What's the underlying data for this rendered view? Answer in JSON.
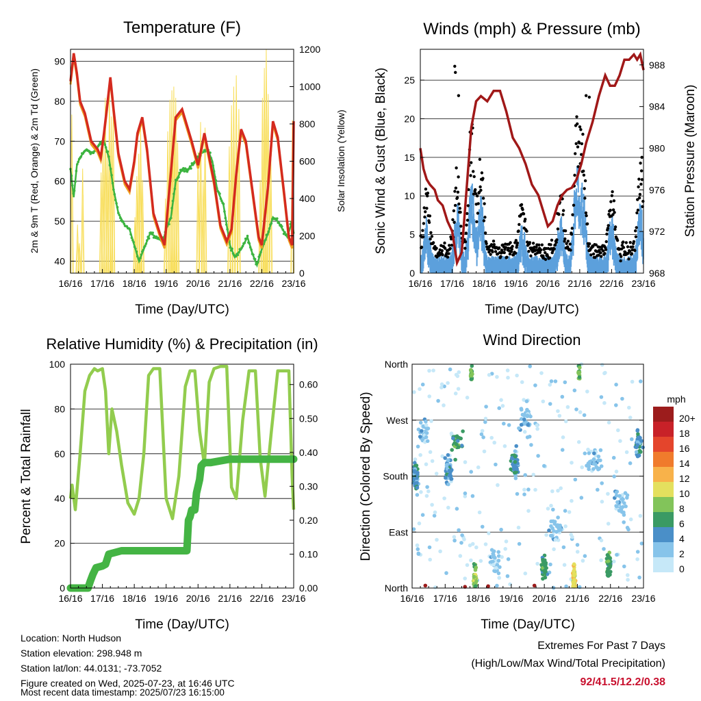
{
  "colors": {
    "temp_2m": "#d42a1f",
    "temp_9m": "#f0a020",
    "dewpoint": "#3cb440",
    "solar": "#f8de5a",
    "wind": "#5ca0dc",
    "gust": "#000000",
    "pressure": "#a01818",
    "rh": "#92cc4e",
    "precip": "#44b444"
  },
  "time_ticks": [
    "16/16",
    "17/16",
    "18/16",
    "19/16",
    "20/16",
    "21/16",
    "22/16",
    "23/16"
  ],
  "x_title": "Time (Day/UTC)",
  "temperature": {
    "title": "Temperature (F)",
    "y_left_title": "2m & 9m T (Red, Orange) & 2m Td (Green)",
    "y_right_title": "Solar Insolation (Yellow)",
    "y_left_ticks": [
      "40",
      "50",
      "60",
      "70",
      "80",
      "90"
    ],
    "y_right_ticks": [
      "0",
      "200",
      "400",
      "600",
      "800",
      "1000",
      "1200"
    ],
    "chart_data": {
      "type": "line",
      "x_range_days": [
        0,
        7
      ],
      "ylim_left": [
        37,
        93
      ],
      "ylim_right": [
        0,
        1200
      ],
      "series": [
        {
          "key": "temp_2m",
          "x": [
            0,
            0.1,
            0.2,
            0.3,
            0.45,
            0.65,
            0.85,
            0.95,
            1.05,
            1.15,
            1.25,
            1.35,
            1.5,
            1.7,
            1.85,
            2.0,
            2.1,
            2.25,
            2.4,
            2.6,
            2.8,
            2.95,
            3.1,
            3.3,
            3.5,
            3.8,
            4.0,
            4.2,
            4.35,
            4.5,
            4.7,
            4.9,
            5.05,
            5.2,
            5.35,
            5.5,
            5.7,
            5.9,
            6.0,
            6.2,
            6.35,
            6.5,
            6.7,
            6.85,
            6.95,
            7.0
          ],
          "y": [
            85,
            92,
            87,
            80,
            77,
            70,
            68,
            66,
            72,
            79,
            86,
            78,
            67,
            60,
            58,
            65,
            72,
            76,
            68,
            52,
            47,
            44,
            58,
            76,
            78,
            70,
            64,
            72,
            66,
            60,
            49,
            45,
            48,
            62,
            73,
            70,
            58,
            46,
            44,
            59,
            75,
            71,
            57,
            46,
            44,
            75
          ]
        },
        {
          "key": "dewpoint",
          "x": [
            0,
            0.1,
            0.2,
            0.3,
            0.5,
            0.7,
            0.9,
            1.05,
            1.2,
            1.35,
            1.5,
            1.7,
            1.85,
            2.0,
            2.15,
            2.3,
            2.5,
            2.7,
            2.9,
            3.0,
            3.15,
            3.3,
            3.5,
            3.7,
            3.9,
            4.1,
            4.3,
            4.45,
            4.6,
            4.8,
            5.0,
            5.15,
            5.35,
            5.55,
            5.7,
            5.85,
            6.0,
            6.2,
            6.35,
            6.5,
            6.65,
            6.8,
            6.95,
            7.0
          ],
          "y": [
            63,
            56,
            64,
            66,
            68,
            67,
            69,
            70,
            66,
            58,
            52,
            49,
            48,
            44,
            40,
            43,
            47,
            46,
            45,
            48,
            51,
            60,
            63,
            63,
            65,
            67,
            68,
            65,
            58,
            54,
            44,
            41,
            43,
            46,
            42,
            39,
            43,
            47,
            51,
            50,
            48,
            46,
            50,
            47
          ]
        }
      ],
      "solar_peaks": [
        {
          "x": 0.04,
          "y": 850
        },
        {
          "x": 0.22,
          "y": 260
        },
        {
          "x": 0.28,
          "y": 160
        },
        {
          "x": 0.38,
          "y": 560
        },
        {
          "x": 0.96,
          "y": 540
        },
        {
          "x": 1.02,
          "y": 700
        },
        {
          "x": 1.09,
          "y": 940
        },
        {
          "x": 1.15,
          "y": 640
        },
        {
          "x": 1.22,
          "y": 980
        },
        {
          "x": 1.28,
          "y": 840
        },
        {
          "x": 1.34,
          "y": 880
        },
        {
          "x": 2.02,
          "y": 300
        },
        {
          "x": 2.08,
          "y": 520
        },
        {
          "x": 2.14,
          "y": 640
        },
        {
          "x": 2.2,
          "y": 780
        },
        {
          "x": 2.26,
          "y": 500
        },
        {
          "x": 2.98,
          "y": 400
        },
        {
          "x": 3.05,
          "y": 760
        },
        {
          "x": 3.12,
          "y": 930
        },
        {
          "x": 3.18,
          "y": 980
        },
        {
          "x": 3.24,
          "y": 1000
        },
        {
          "x": 3.3,
          "y": 940
        },
        {
          "x": 3.36,
          "y": 700
        },
        {
          "x": 4.0,
          "y": 650
        },
        {
          "x": 4.08,
          "y": 810
        },
        {
          "x": 4.16,
          "y": 500
        },
        {
          "x": 4.22,
          "y": 780
        },
        {
          "x": 4.98,
          "y": 680
        },
        {
          "x": 5.05,
          "y": 900
        },
        {
          "x": 5.12,
          "y": 1000
        },
        {
          "x": 5.2,
          "y": 1060
        },
        {
          "x": 5.28,
          "y": 880
        },
        {
          "x": 5.95,
          "y": 500
        },
        {
          "x": 6.02,
          "y": 940
        },
        {
          "x": 6.08,
          "y": 1100
        },
        {
          "x": 6.14,
          "y": 1200
        },
        {
          "x": 6.2,
          "y": 960
        },
        {
          "x": 6.28,
          "y": 700
        },
        {
          "x": 6.96,
          "y": 820
        }
      ]
    }
  },
  "winds": {
    "title": "Winds (mph) & Pressure (mb)",
    "y_left_title": "Sonic Wind & Gust (Blue, Black)",
    "y_right_title": "Station Pressure (Maroon)",
    "y_left_ticks": [
      "0",
      "5",
      "10",
      "15",
      "20",
      "25"
    ],
    "y_right_ticks": [
      "968",
      "972",
      "976",
      "980",
      "984",
      "988"
    ],
    "chart_data": {
      "type": "line",
      "x_range_days": [
        0,
        7
      ],
      "ylim_left": [
        0,
        29
      ],
      "ylim_right": [
        968,
        989.5
      ],
      "pressure": {
        "x": [
          0,
          0.1,
          0.2,
          0.3,
          0.45,
          0.55,
          0.7,
          0.85,
          1.0,
          1.15,
          1.3,
          1.45,
          1.6,
          1.75,
          1.9,
          2.1,
          2.3,
          2.5,
          2.7,
          2.9,
          3.1,
          3.3,
          3.5,
          3.7,
          3.9,
          4.0,
          4.15,
          4.3,
          4.45,
          4.6,
          4.75,
          4.9,
          5.05,
          5.2,
          5.4,
          5.6,
          5.8,
          5.95,
          6.1,
          6.25,
          6.4,
          6.55,
          6.7,
          6.8,
          6.9,
          7.0
        ],
        "y": [
          980,
          978,
          977,
          976.5,
          976,
          975,
          974.5,
          973,
          972,
          969,
          970,
          976,
          982,
          984.5,
          985,
          984.5,
          985.5,
          985.5,
          983.5,
          981,
          980,
          978.5,
          976.5,
          975.5,
          973.5,
          972.5,
          973,
          974.5,
          975.5,
          976,
          976.2,
          977,
          978.5,
          980.5,
          982.5,
          985,
          987,
          986,
          986,
          987,
          988.5,
          988.5,
          989,
          988.5,
          989,
          987.5
        ]
      },
      "wind_bursts": [
        {
          "x": 0.2,
          "h": 6
        },
        {
          "x": 1.15,
          "h": 8
        },
        {
          "x": 1.6,
          "h": 12
        },
        {
          "x": 1.9,
          "h": 9
        },
        {
          "x": 3.2,
          "h": 5
        },
        {
          "x": 4.4,
          "h": 6
        },
        {
          "x": 4.9,
          "h": 13
        },
        {
          "x": 5.1,
          "h": 10
        },
        {
          "x": 6.0,
          "h": 6
        },
        {
          "x": 6.9,
          "h": 8
        }
      ]
    }
  },
  "humidity": {
    "title": "Relative Humidity (%) & Precipitation (in)",
    "y_left_title": "Percent & Total Rainfall",
    "y_left_ticks": [
      "0",
      "20",
      "40",
      "60",
      "80",
      "100"
    ],
    "y_right_ticks": [
      "0.00",
      "0.10",
      "0.20",
      "0.30",
      "0.40",
      "0.50",
      "0.60"
    ],
    "chart_data": {
      "type": "line",
      "x_range_days": [
        0,
        7
      ],
      "ylim_left": [
        0,
        100
      ],
      "ylim_right": [
        0,
        0.66
      ],
      "rh": {
        "x": [
          0,
          0.05,
          0.15,
          0.3,
          0.45,
          0.6,
          0.75,
          0.85,
          1.0,
          1.1,
          1.2,
          1.3,
          1.45,
          1.6,
          1.8,
          2.0,
          2.15,
          2.3,
          2.45,
          2.6,
          2.8,
          3.0,
          3.2,
          3.4,
          3.6,
          3.75,
          3.9,
          4.05,
          4.2,
          4.35,
          4.5,
          4.7,
          4.9,
          5.05,
          5.2,
          5.4,
          5.6,
          5.8,
          5.95,
          6.1,
          6.3,
          6.5,
          6.7,
          6.85,
          6.95,
          7.0
        ],
        "y": [
          40,
          46,
          35,
          60,
          88,
          95,
          98,
          97,
          98,
          88,
          60,
          80,
          70,
          55,
          38,
          33,
          40,
          60,
          95,
          98,
          98,
          40,
          31,
          50,
          90,
          97,
          97,
          70,
          55,
          92,
          98,
          99,
          99,
          45,
          40,
          75,
          97,
          97,
          58,
          41,
          70,
          97,
          97,
          97,
          50,
          35
        ]
      },
      "precip": {
        "x": [
          0,
          0.55,
          0.62,
          0.7,
          0.8,
          1.0,
          1.1,
          1.2,
          1.4,
          1.6,
          2.0,
          3.0,
          3.65,
          3.7,
          3.75,
          3.8,
          3.9,
          3.95,
          4.05,
          4.1,
          4.2,
          4.4,
          5.0,
          6.0,
          7.0
        ],
        "y": [
          0,
          0,
          0.02,
          0.04,
          0.06,
          0.065,
          0.07,
          0.1,
          0.105,
          0.11,
          0.11,
          0.11,
          0.11,
          0.2,
          0.21,
          0.23,
          0.23,
          0.28,
          0.32,
          0.36,
          0.37,
          0.37,
          0.38,
          0.38,
          0.38
        ]
      }
    }
  },
  "wind_direction": {
    "title": "Wind Direction",
    "y_left_title": "Direction (Colored By Speed)",
    "y_ticks": [
      "North",
      "East",
      "South",
      "West",
      "North"
    ],
    "legend_title": "mph",
    "legend_labels": [
      "0",
      "2",
      "4",
      "6",
      "8",
      "10",
      "12",
      "14",
      "16",
      "18",
      "20+"
    ],
    "legend_colors": [
      "#c6e8f8",
      "#87c4ea",
      "#4a8fc8",
      "#3a9a64",
      "#82c45a",
      "#e4e05e",
      "#f8b24a",
      "#f07b2c",
      "#e4452c",
      "#c82128",
      "#9c1c1c"
    ],
    "chart_data": {
      "type": "scatter",
      "x_range_days": [
        0,
        7
      ],
      "ylim_degrees": [
        0,
        360
      ],
      "clusters": [
        {
          "x": 0.1,
          "deg": 180,
          "spread": 0.25,
          "n": 55,
          "level": 2
        },
        {
          "x": 0.35,
          "deg": 250,
          "spread": 0.5,
          "n": 30,
          "level": 1
        },
        {
          "x": 1.1,
          "deg": 190,
          "spread": 0.35,
          "n": 60,
          "level": 2
        },
        {
          "x": 1.35,
          "deg": 230,
          "spread": 0.5,
          "n": 25,
          "level": 3
        },
        {
          "x": 1.9,
          "deg": 15,
          "spread": 0.15,
          "n": 60,
          "level": 4
        },
        {
          "x": 1.8,
          "deg": 350,
          "spread": 0.1,
          "n": 20,
          "level": 4
        },
        {
          "x": 2.5,
          "deg": 45,
          "spread": 0.6,
          "n": 30,
          "level": 1
        },
        {
          "x": 3.1,
          "deg": 200,
          "spread": 0.35,
          "n": 60,
          "level": 2
        },
        {
          "x": 3.4,
          "deg": 270,
          "spread": 0.8,
          "n": 30,
          "level": 1
        },
        {
          "x": 4.0,
          "deg": 30,
          "spread": 0.3,
          "n": 35,
          "level": 3
        },
        {
          "x": 4.35,
          "deg": 90,
          "spread": 0.8,
          "n": 30,
          "level": 1
        },
        {
          "x": 4.9,
          "deg": 15,
          "spread": 0.12,
          "n": 70,
          "level": 5
        },
        {
          "x": 5.05,
          "deg": 350,
          "spread": 0.1,
          "n": 15,
          "level": 4
        },
        {
          "x": 5.5,
          "deg": 200,
          "spread": 0.8,
          "n": 35,
          "level": 1
        },
        {
          "x": 5.95,
          "deg": 40,
          "spread": 0.25,
          "n": 45,
          "level": 3
        },
        {
          "x": 6.3,
          "deg": 140,
          "spread": 0.8,
          "n": 35,
          "level": 1
        },
        {
          "x": 6.85,
          "deg": 230,
          "spread": 0.4,
          "n": 40,
          "level": 2
        }
      ]
    }
  },
  "info": {
    "location": "Location: North Hudson",
    "elevation": "Station elevation: 298.948 m",
    "latlon": "Station lat/lon: 44.0131; -73.7052",
    "created": "Figure created on Wed, 2025-07-23, at 16:46 UTC",
    "recent": "Most recent data timestamp: 2025/07/23 16:15:00"
  },
  "extremes": {
    "line1": "Extremes For Past 7 Days",
    "line2": "(High/Low/Max Wind/Total Precipitation)",
    "values": "92/41.5/12.2/0.38"
  }
}
